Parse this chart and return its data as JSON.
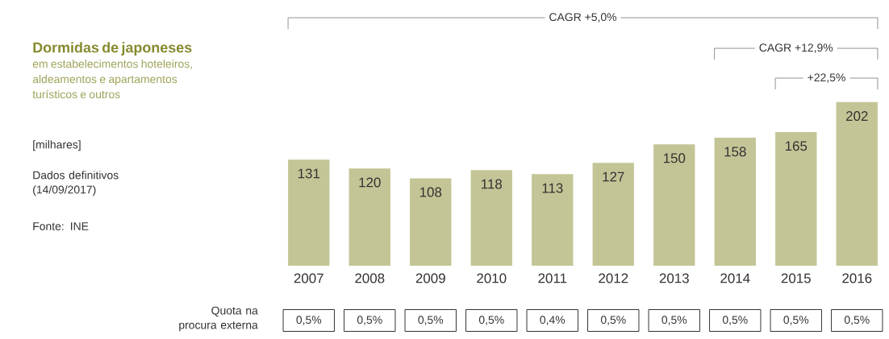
{
  "chart_data": {
    "type": "bar",
    "title": "Dormidas de japoneses",
    "subtitle": "em estabelecimentos hoteleiros, aldeamentos e apartamentos turísticos e outros",
    "categories": [
      "2007",
      "2008",
      "2009",
      "2010",
      "2011",
      "2012",
      "2013",
      "2014",
      "2015",
      "2016"
    ],
    "values": [
      131,
      120,
      108,
      118,
      113,
      127,
      150,
      158,
      165,
      202
    ],
    "color": "#c4c596",
    "data_labels": true,
    "annotations": [
      "CAGR +5,0%",
      "CAGR +12,9%",
      "+22,5%",
      "[milhares]",
      "Dados definitivos (14/09/2017)",
      "Fonte: INE",
      "Quota na procura externa",
      "0,5%",
      "0,5%",
      "0,5%",
      "0,5%",
      "0,4%",
      "0,5%",
      "0,5%",
      "0,5%",
      "0,5%",
      "0,5%"
    ]
  }
}
